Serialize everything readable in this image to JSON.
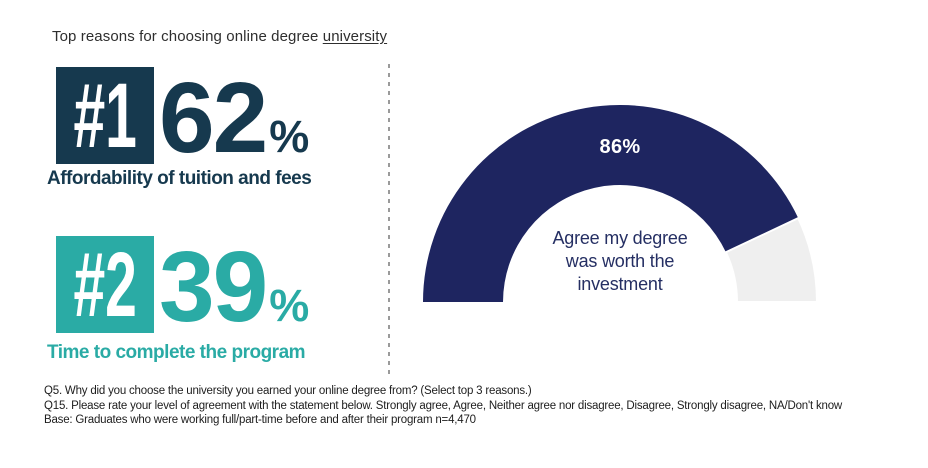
{
  "title": {
    "prefix": "Top reasons for choosing online degree ",
    "underlined": "university"
  },
  "colors": {
    "navy": "#16394e",
    "teal": "#2aaba5",
    "gauge_fill": "#1e2560",
    "gauge_rest": "#efefef",
    "divider_gray": "#9a9a9a"
  },
  "reasons": [
    {
      "rank": "#1",
      "value": "62",
      "percent_sign": "%",
      "label": "Affordability of tuition and fees"
    },
    {
      "rank": "#2",
      "value": "39",
      "percent_sign": "%",
      "label": "Time to complete the program"
    }
  ],
  "gauge": {
    "value_label": "86%",
    "caption": "Agree my degree was worth the investment",
    "caption_lines": [
      "Agree my degree",
      "was worth the",
      "investment"
    ]
  },
  "chart_data": [
    {
      "type": "bar",
      "title": "Top reasons for choosing online degree university",
      "categories": [
        "Affordability of tuition and fees",
        "Time to complete the program"
      ],
      "values": [
        62,
        39
      ],
      "unit": "%",
      "ranks": [
        "#1",
        "#2"
      ],
      "layout": "ranked-number-callouts"
    },
    {
      "type": "pie",
      "subtype": "half-donut-gauge",
      "categories": [
        "Agree my degree was worth the investment",
        "Remainder"
      ],
      "values": [
        86,
        14
      ],
      "unit": "%",
      "value_label": "86%",
      "center_label": "Agree my degree was worth the investment",
      "fill_color": "#1e2560",
      "rest_color": "#efefef"
    }
  ],
  "footnotes": [
    "Q5. Why did you choose the university you earned your online degree from? (Select top 3 reasons.)",
    "Q15. Please rate your level of agreement with the statement below. Strongly agree, Agree,  Neither agree nor disagree, Disagree, Strongly disagree, NA/Don't know",
    "Base: Graduates who were working full/part-time before and after their program n=4,470"
  ]
}
